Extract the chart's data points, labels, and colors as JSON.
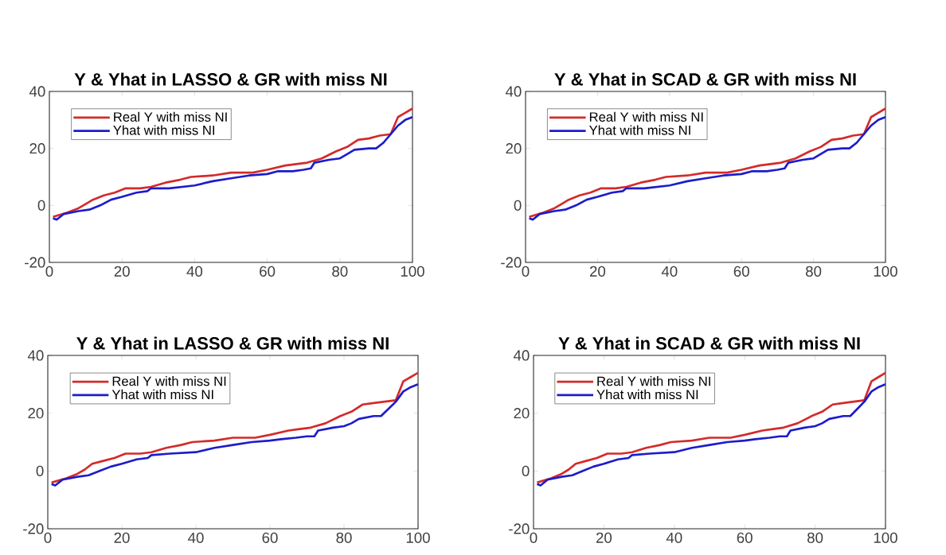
{
  "chart_data": [
    {
      "type": "line",
      "title": "Y & Yhat in LASSO & GR with miss NI",
      "xlim": [
        0,
        100
      ],
      "ylim": [
        -20,
        40
      ],
      "xticks": [
        0,
        20,
        40,
        60,
        80,
        100
      ],
      "yticks": [
        -20,
        0,
        20,
        40
      ],
      "grid": false,
      "legend": "top left",
      "marker": "none",
      "line_style": "solid",
      "series": [
        {
          "name": "Real Y with miss NI",
          "color": "#d42a2a",
          "x": [
            1,
            5,
            8,
            10,
            12,
            15,
            18,
            21,
            25,
            28,
            32,
            36,
            39,
            45,
            50,
            56,
            60,
            65,
            68,
            71,
            75,
            79,
            82,
            85,
            88,
            91,
            94,
            96,
            98,
            100
          ],
          "values": [
            -4,
            -2.5,
            -1,
            0.5,
            2,
            3.5,
            4.5,
            6,
            6,
            6.5,
            8,
            9,
            10,
            10.5,
            11.5,
            11.5,
            12.5,
            14,
            14.5,
            15,
            16.5,
            19,
            20.5,
            23,
            23.5,
            24.5,
            25,
            31,
            32.5,
            34
          ]
        },
        {
          "name": "Yhat with miss NI",
          "color": "#1c1ccc",
          "x": [
            1,
            2,
            4,
            8,
            11,
            14,
            17,
            20,
            24,
            27,
            28,
            33,
            40,
            45,
            50,
            55,
            60,
            63,
            67,
            70,
            72,
            73,
            77,
            80,
            82,
            84,
            88,
            90,
            92,
            94,
            96,
            98,
            100
          ],
          "values": [
            -4.5,
            -5,
            -3,
            -2,
            -1.5,
            0,
            2,
            3,
            4.5,
            5,
            6,
            6,
            7,
            8.5,
            9.5,
            10.5,
            11,
            12,
            12,
            12.5,
            13,
            15,
            16,
            16.5,
            18,
            19.5,
            20,
            20,
            22,
            25,
            28,
            30,
            31
          ]
        }
      ]
    },
    {
      "type": "line",
      "title": "Y & Yhat in SCAD & GR with miss NI",
      "xlim": [
        0,
        100
      ],
      "ylim": [
        -20,
        40
      ],
      "xticks": [
        0,
        20,
        40,
        60,
        80,
        100
      ],
      "yticks": [
        -20,
        0,
        20,
        40
      ],
      "grid": false,
      "legend": "top left",
      "marker": "none",
      "line_style": "solid",
      "series": [
        {
          "name": "Real Y with miss NI",
          "color": "#d42a2a",
          "x": [
            1,
            5,
            8,
            10,
            12,
            15,
            18,
            21,
            25,
            28,
            32,
            36,
            39,
            45,
            50,
            56,
            60,
            65,
            68,
            71,
            75,
            79,
            82,
            85,
            88,
            91,
            94,
            96,
            98,
            100
          ],
          "values": [
            -4,
            -2.5,
            -1,
            0.5,
            2,
            3.5,
            4.5,
            6,
            6,
            6.5,
            8,
            9,
            10,
            10.5,
            11.5,
            11.5,
            12.5,
            14,
            14.5,
            15,
            16.5,
            19,
            20.5,
            23,
            23.5,
            24.5,
            25,
            31,
            32.5,
            34
          ]
        },
        {
          "name": "Yhat with miss NI",
          "color": "#1c1ccc",
          "x": [
            1,
            2,
            4,
            8,
            11,
            14,
            17,
            20,
            24,
            27,
            28,
            33,
            40,
            45,
            50,
            55,
            60,
            63,
            67,
            70,
            72,
            73,
            77,
            80,
            82,
            84,
            88,
            90,
            92,
            94,
            96,
            98,
            100
          ],
          "values": [
            -4.5,
            -5,
            -3,
            -2,
            -1.5,
            0,
            2,
            3,
            4.5,
            5,
            6,
            6,
            7,
            8.5,
            9.5,
            10.5,
            11,
            12,
            12,
            12.5,
            13,
            15,
            16,
            16.5,
            18,
            19.5,
            20,
            20,
            22,
            25,
            28,
            30,
            31
          ]
        }
      ]
    },
    {
      "type": "line",
      "title": "Y & Yhat in LASSO & GR with miss NI",
      "xlim": [
        0,
        100
      ],
      "ylim": [
        -20,
        40
      ],
      "xticks": [
        0,
        20,
        40,
        60,
        80,
        100
      ],
      "yticks": [
        -20,
        0,
        20,
        40
      ],
      "grid": false,
      "legend": "top left",
      "marker": "none",
      "line_style": "solid",
      "series": [
        {
          "name": "Real Y with miss NI",
          "color": "#d42a2a",
          "x": [
            1,
            5,
            8,
            10,
            12,
            15,
            18,
            21,
            25,
            28,
            32,
            36,
            39,
            45,
            50,
            56,
            60,
            65,
            68,
            71,
            75,
            79,
            82,
            85,
            88,
            91,
            94,
            96,
            98,
            100
          ],
          "values": [
            -4,
            -2.5,
            -1,
            0.5,
            2.5,
            3.5,
            4.5,
            6,
            6,
            6.5,
            8,
            9,
            10,
            10.5,
            11.5,
            11.5,
            12.5,
            14,
            14.5,
            15,
            16.5,
            19,
            20.5,
            23,
            23.5,
            24,
            24.5,
            31,
            32.5,
            34
          ]
        },
        {
          "name": "Yhat with miss NI",
          "color": "#1c1ccc",
          "x": [
            1,
            2,
            4,
            8,
            11,
            14,
            17,
            20,
            24,
            27,
            28,
            33,
            40,
            45,
            50,
            55,
            60,
            63,
            67,
            70,
            72,
            73,
            77,
            80,
            82,
            84,
            88,
            90,
            92,
            94,
            96,
            98,
            100
          ],
          "values": [
            -4.5,
            -5,
            -3,
            -2,
            -1.5,
            0,
            1.5,
            2.5,
            4,
            4.5,
            5.5,
            6,
            6.5,
            8,
            9,
            10,
            10.5,
            11,
            11.5,
            12,
            12,
            14,
            15,
            15.5,
            16.5,
            18,
            19,
            19,
            21.5,
            24,
            27.5,
            29,
            30
          ]
        }
      ]
    },
    {
      "type": "line",
      "title": "Y & Yhat in SCAD & GR with miss NI",
      "xlim": [
        0,
        100
      ],
      "ylim": [
        -20,
        40
      ],
      "xticks": [
        0,
        20,
        40,
        60,
        80,
        100
      ],
      "yticks": [
        -20,
        0,
        20,
        40
      ],
      "grid": false,
      "legend": "top left",
      "marker": "none",
      "line_style": "solid",
      "series": [
        {
          "name": "Real Y with miss NI",
          "color": "#d42a2a",
          "x": [
            1,
            5,
            8,
            10,
            12,
            15,
            18,
            21,
            25,
            28,
            32,
            36,
            39,
            45,
            50,
            56,
            60,
            65,
            68,
            71,
            75,
            79,
            82,
            85,
            88,
            91,
            94,
            96,
            98,
            100
          ],
          "values": [
            -4,
            -2.5,
            -1,
            0.5,
            2.5,
            3.5,
            4.5,
            6,
            6,
            6.5,
            8,
            9,
            10,
            10.5,
            11.5,
            11.5,
            12.5,
            14,
            14.5,
            15,
            16.5,
            19,
            20.5,
            23,
            23.5,
            24,
            24.5,
            31,
            32.5,
            34
          ]
        },
        {
          "name": "Yhat with miss NI",
          "color": "#1c1ccc",
          "x": [
            1,
            2,
            4,
            8,
            11,
            14,
            17,
            20,
            24,
            27,
            28,
            33,
            40,
            45,
            50,
            55,
            60,
            63,
            67,
            70,
            72,
            73,
            77,
            80,
            82,
            84,
            88,
            90,
            92,
            94,
            96,
            98,
            100
          ],
          "values": [
            -4.5,
            -5,
            -3,
            -2,
            -1.5,
            0,
            1.5,
            2.5,
            4,
            4.5,
            5.5,
            6,
            6.5,
            8,
            9,
            10,
            10.5,
            11,
            11.5,
            12,
            12,
            14,
            15,
            15.5,
            16.5,
            18,
            19,
            19,
            21.5,
            24,
            27.5,
            29,
            30
          ]
        }
      ]
    }
  ]
}
